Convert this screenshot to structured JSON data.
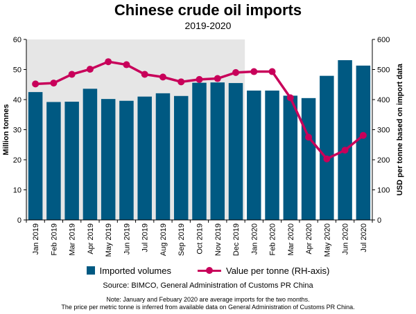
{
  "chart_data": {
    "type": "bar",
    "title": "Chinese crude oil imports",
    "subtitle": "2019-2020",
    "categories": [
      "Jan 2019",
      "Feb 2019",
      "Mar 2019",
      "Apr 2019",
      "May 2019",
      "Jun 2019",
      "Jul 2019",
      "Aug 2019",
      "Sep 2019",
      "Oct 2019",
      "Nov 2019",
      "Dec 2019",
      "Jan 2020",
      "Feb 2020",
      "Mar 2020",
      "Apr 2020",
      "May 2020",
      "Jun 2020",
      "Jul 2020"
    ],
    "series": [
      {
        "name": "Imported volumes",
        "type": "bar",
        "axis": "left",
        "values": [
          42.5,
          39.2,
          39.3,
          43.6,
          40.2,
          39.6,
          41.0,
          42.1,
          41.2,
          45.6,
          45.7,
          45.5,
          43.0,
          43.0,
          41.3,
          40.5,
          47.9,
          53.1,
          51.3
        ]
      },
      {
        "name": "Value per tonne (RH-axis)",
        "type": "line",
        "axis": "right",
        "values": [
          452,
          455,
          484,
          501,
          526,
          516,
          484,
          475,
          459,
          467,
          470,
          490,
          493,
          493,
          406,
          275,
          203,
          232,
          281
        ]
      }
    ],
    "ylabel": "Million tonnes",
    "y2label": "USD per tonne based on import data",
    "ylim": [
      0,
      60
    ],
    "y2lim": [
      0,
      600
    ],
    "yticks": [
      0,
      10,
      20,
      30,
      40,
      50,
      60
    ],
    "y2ticks": [
      0,
      100,
      200,
      300,
      400,
      500,
      600
    ],
    "shaded_region": [
      "Jan 2019",
      "Dec 2019"
    ],
    "grid": false,
    "legend": "bottom"
  },
  "colors": {
    "bar": "#005982",
    "line": "#c8005a",
    "shade": "#e6e6e6"
  },
  "source": "Source: BIMCO, General Administration of Customs PR China",
  "note_line1": "Note: January and Febuary 2020 are average imports for the two months.",
  "note_line2": "The price per metric tonne is inferred from available data on General Administration of Customs PR China."
}
